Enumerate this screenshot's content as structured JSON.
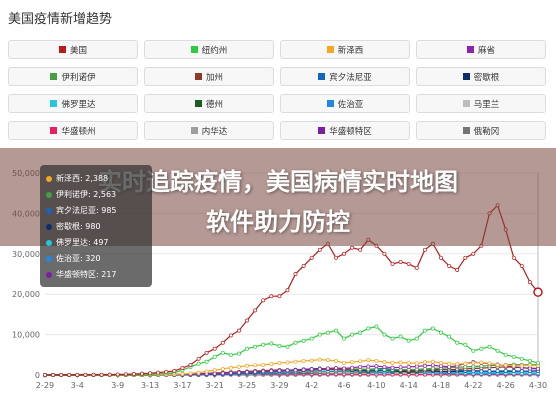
{
  "title": "美国疫情新增趋势",
  "legend": [
    {
      "label": "美国",
      "color": "#b71c1c"
    },
    {
      "label": "纽约州",
      "color": "#2ecc40"
    },
    {
      "label": "新泽西",
      "color": "#f5a623"
    },
    {
      "label": "麻省",
      "color": "#8e24aa"
    },
    {
      "label": "伊利诺伊",
      "color": "#43a047"
    },
    {
      "label": "加州",
      "color": "#8e3a2a"
    },
    {
      "label": "宾夕法尼亚",
      "color": "#1565c0"
    },
    {
      "label": "密歇根",
      "color": "#0d2c6c"
    },
    {
      "label": "佛罗里达",
      "color": "#26c6da"
    },
    {
      "label": "德州",
      "color": "#1b5e20"
    },
    {
      "label": "佐治亚",
      "color": "#1e88e5"
    },
    {
      "label": "马里兰",
      "color": "#bdbdbd"
    },
    {
      "label": "华盛顿州",
      "color": "#e91e63"
    },
    {
      "label": "内华达",
      "color": "#9e9e9e"
    },
    {
      "label": "华盛顿特区",
      "color": "#7b1fa2"
    },
    {
      "label": "俄勒冈",
      "color": "#757575"
    }
  ],
  "banner": {
    "line1": "实时追踪疫情，美国病情实时地图",
    "line2": "软件助力防控"
  },
  "tooltip": {
    "rows": [
      {
        "text": "新泽西: 2,388",
        "color": "#f5a623"
      },
      {
        "text": "伊利诺伊: 2,563",
        "color": "#43a047"
      },
      {
        "text": "宾夕法尼亚: 985",
        "color": "#1565c0"
      },
      {
        "text": "密歇根: 980",
        "color": "#0d2c6c"
      },
      {
        "text": "佛罗里达: 497",
        "color": "#26c6da"
      },
      {
        "text": "佐治亚: 320",
        "color": "#1e88e5"
      },
      {
        "text": "华盛顿特区: 217",
        "color": "#7b1fa2"
      }
    ]
  },
  "chart_data": {
    "type": "line",
    "title": "美国疫情新增趋势",
    "ylim": [
      0,
      50000
    ],
    "yticks": [
      0,
      10000,
      20000,
      30000,
      40000,
      50000
    ],
    "ytick_labels": [
      "0",
      "10,000",
      "20,000",
      "30,000",
      "40,000",
      "50,000"
    ],
    "x": [
      "2-29",
      "3-1",
      "3-2",
      "3-3",
      "3-4",
      "3-5",
      "3-6",
      "3-7",
      "3-8",
      "3-9",
      "3-10",
      "3-11",
      "3-12",
      "3-13",
      "3-14",
      "3-15",
      "3-16",
      "3-17",
      "3-18",
      "3-19",
      "3-20",
      "3-21",
      "3-22",
      "3-23",
      "3-24",
      "3-25",
      "3-26",
      "3-27",
      "3-28",
      "3-29",
      "3-30",
      "3-31",
      "4-1",
      "4-2",
      "4-3",
      "4-4",
      "4-5",
      "4-6",
      "4-7",
      "4-8",
      "4-9",
      "4-10",
      "4-11",
      "4-12",
      "4-13",
      "4-14",
      "4-15",
      "4-16",
      "4-17",
      "4-18",
      "4-19",
      "4-20",
      "4-21",
      "4-22",
      "4-23",
      "4-24",
      "4-25",
      "4-26",
      "4-27",
      "4-28",
      "4-29",
      "4-30"
    ],
    "xtick_labels": [
      "2-29",
      "3-4",
      "3-9",
      "3-13",
      "3-17",
      "3-21",
      "3-25",
      "3-29",
      "4-2",
      "4-6",
      "4-10",
      "4-14",
      "4-18",
      "4-22",
      "4-26",
      "4-30"
    ],
    "xtick_indices": [
      0,
      4,
      9,
      13,
      17,
      21,
      25,
      29,
      33,
      37,
      41,
      45,
      49,
      53,
      57,
      61
    ],
    "grid": true,
    "legend_placement": "top",
    "series": [
      {
        "name": "美国",
        "color": "#b71c1c",
        "values": [
          7,
          10,
          15,
          25,
          30,
          40,
          65,
          85,
          110,
          150,
          180,
          250,
          350,
          450,
          600,
          800,
          1000,
          1700,
          2500,
          4000,
          5500,
          6500,
          8000,
          9800,
          11000,
          13500,
          16000,
          18500,
          19500,
          19500,
          21000,
          25000,
          27000,
          29000,
          31000,
          32500,
          29000,
          30000,
          31500,
          31000,
          33500,
          32000,
          30000,
          27500,
          28000,
          27500,
          26500,
          31000,
          32500,
          29000,
          27000,
          26000,
          29000,
          30000,
          32000,
          40000,
          42000,
          36000,
          29000,
          27000,
          23000,
          20500
        ]
      },
      {
        "name": "纽约州",
        "color": "#2ecc40",
        "values": [
          0,
          0,
          0,
          1,
          5,
          10,
          20,
          30,
          40,
          60,
          80,
          120,
          150,
          200,
          300,
          400,
          600,
          1200,
          2000,
          2800,
          3300,
          4500,
          5500,
          5000,
          5300,
          6500,
          7000,
          7500,
          7800,
          7200,
          7000,
          8000,
          8500,
          9000,
          10000,
          10500,
          11000,
          9000,
          10000,
          10500,
          11500,
          12000,
          10000,
          9000,
          9500,
          8500,
          9000,
          11000,
          11500,
          10500,
          9500,
          8000,
          7500,
          6000,
          6500,
          7000,
          6000,
          5000,
          4500,
          4000,
          3500,
          3000
        ]
      },
      {
        "name": "新泽西",
        "color": "#f5a623",
        "values": [
          0,
          0,
          0,
          0,
          0,
          1,
          2,
          3,
          5,
          10,
          15,
          20,
          30,
          50,
          80,
          100,
          150,
          250,
          400,
          600,
          900,
          1200,
          1500,
          1800,
          2000,
          2300,
          2400,
          2500,
          2700,
          3000,
          3100,
          3300,
          3500,
          3600,
          3800,
          3700,
          3500,
          3000,
          3200,
          3400,
          3700,
          3500,
          3200,
          3000,
          3100,
          3000,
          2900,
          3200,
          3300,
          3000,
          2800,
          2700,
          2800,
          3000,
          3100,
          2900,
          2500,
          2400,
          2300,
          2300,
          2400,
          2388
        ]
      },
      {
        "name": "麻省",
        "color": "#8e24aa",
        "values": [
          0,
          0,
          0,
          0,
          0,
          0,
          1,
          2,
          4,
          8,
          12,
          20,
          30,
          45,
          60,
          80,
          100,
          150,
          200,
          250,
          300,
          350,
          400,
          500,
          600,
          700,
          800,
          900,
          1000,
          1100,
          1150,
          1200,
          1300,
          1400,
          1500,
          1600,
          1700,
          1600,
          1800,
          2000,
          2100,
          2200,
          2000,
          1800,
          1900,
          2000,
          2100,
          2300,
          2400,
          2200,
          2000,
          2300,
          2800,
          3200,
          3000,
          2800,
          2600,
          2300,
          2000,
          1800,
          1600,
          1500
        ]
      },
      {
        "name": "伊利诺伊",
        "color": "#43a047",
        "values": [
          0,
          0,
          0,
          0,
          0,
          0,
          1,
          2,
          3,
          5,
          8,
          12,
          18,
          25,
          40,
          60,
          80,
          100,
          150,
          200,
          250,
          350,
          450,
          550,
          650,
          750,
          850,
          950,
          1000,
          1050,
          1100,
          1200,
          1300,
          1400,
          1500,
          1600,
          1700,
          1600,
          1500,
          1450,
          1400,
          1350,
          1300,
          1250,
          1300,
          1350,
          1400,
          1500,
          1600,
          1700,
          1800,
          1900,
          2000,
          2100,
          2200,
          2300,
          2400,
          2500,
          2600,
          2500,
          2550,
          2563
        ]
      },
      {
        "name": "加州",
        "color": "#8e3a2a",
        "values": [
          0,
          1,
          2,
          3,
          5,
          8,
          10,
          15,
          20,
          25,
          30,
          40,
          50,
          70,
          90,
          120,
          150,
          200,
          250,
          300,
          400,
          500,
          600,
          700,
          800,
          900,
          1000,
          1100,
          1200,
          1250,
          1200,
          1100,
          1150,
          1200,
          1300,
          1400,
          1350,
          1300,
          1250,
          1200,
          1300,
          1350,
          1300,
          1250,
          1200,
          1100,
          1150,
          1200,
          1250,
          1300,
          1350,
          1400,
          1500,
          1600,
          1700,
          1800,
          1900,
          2000,
          1900,
          1800,
          1700,
          1600
        ]
      },
      {
        "name": "宾夕法尼亚",
        "color": "#1565c0",
        "values": [
          0,
          0,
          0,
          0,
          0,
          0,
          0,
          1,
          2,
          3,
          5,
          8,
          10,
          15,
          20,
          30,
          40,
          60,
          80,
          100,
          150,
          200,
          250,
          300,
          400,
          500,
          600,
          700,
          800,
          900,
          1000,
          1100,
          1200,
          1300,
          1400,
          1500,
          1600,
          1500,
          1400,
          1300,
          1400,
          1500,
          1600,
          1400,
          1300,
          1200,
          1100,
          1200,
          1300,
          1400,
          1300,
          1200,
          1100,
          1000,
          900,
          950,
          1000,
          1050,
          1000,
          950,
          990,
          985
        ]
      },
      {
        "name": "密歇根",
        "color": "#0d2c6c",
        "values": [
          0,
          0,
          0,
          0,
          0,
          0,
          0,
          0,
          0,
          0,
          1,
          2,
          5,
          10,
          15,
          25,
          35,
          50,
          80,
          120,
          200,
          300,
          400,
          500,
          600,
          700,
          800,
          900,
          1000,
          1100,
          1200,
          1300,
          1400,
          1500,
          1600,
          1500,
          1400,
          1300,
          1200,
          1100,
          1000,
          1100,
          1200,
          1100,
          1000,
          900,
          1000,
          1100,
          1000,
          900,
          800,
          900,
          1000,
          1100,
          1000,
          900,
          950,
          1000,
          980,
          960,
          970,
          980
        ]
      },
      {
        "name": "佛罗里达",
        "color": "#26c6da",
        "values": [
          0,
          0,
          1,
          1,
          2,
          3,
          4,
          5,
          6,
          8,
          10,
          15,
          20,
          30,
          40,
          60,
          80,
          100,
          150,
          200,
          250,
          300,
          350,
          400,
          450,
          500,
          550,
          600,
          650,
          700,
          750,
          800,
          850,
          900,
          950,
          1000,
          1050,
          1000,
          950,
          900,
          850,
          800,
          900,
          1000,
          1100,
          1000,
          900,
          800,
          700,
          650,
          600,
          550,
          600,
          650,
          700,
          650,
          600,
          550,
          500,
          480,
          490,
          497
        ]
      },
      {
        "name": "德州",
        "color": "#1b5e20",
        "values": [
          0,
          0,
          0,
          0,
          0,
          0,
          1,
          2,
          3,
          4,
          5,
          6,
          8,
          10,
          15,
          20,
          30,
          40,
          60,
          80,
          100,
          150,
          200,
          250,
          300,
          350,
          400,
          450,
          500,
          550,
          600,
          650,
          700,
          750,
          800,
          850,
          900,
          850,
          800,
          750,
          700,
          800,
          900,
          850,
          800,
          750,
          700,
          750,
          800,
          850,
          900,
          950,
          1000,
          950,
          900,
          850,
          800,
          850,
          900,
          950,
          1000,
          1050
        ]
      },
      {
        "name": "佐治亚",
        "color": "#1e88e5",
        "values": [
          0,
          0,
          0,
          0,
          0,
          0,
          0,
          1,
          2,
          3,
          4,
          5,
          6,
          8,
          10,
          15,
          20,
          30,
          50,
          80,
          100,
          150,
          200,
          250,
          300,
          350,
          400,
          450,
          500,
          550,
          600,
          650,
          700,
          750,
          800,
          850,
          900,
          850,
          800,
          750,
          700,
          650,
          600,
          700,
          800,
          750,
          700,
          650,
          600,
          550,
          500,
          450,
          400,
          350,
          300,
          350,
          400,
          380,
          350,
          330,
          325,
          320
        ]
      },
      {
        "name": "马里兰",
        "color": "#bdbdbd",
        "values": [
          0,
          0,
          0,
          0,
          0,
          0,
          1,
          1,
          2,
          3,
          5,
          7,
          10,
          15,
          20,
          30,
          40,
          60,
          80,
          100,
          120,
          150,
          180,
          200,
          250,
          300,
          350,
          400,
          450,
          500,
          550,
          600,
          650,
          700,
          750,
          800,
          850,
          800,
          750,
          700,
          750,
          800,
          850,
          900,
          850,
          800,
          750,
          700,
          750,
          800,
          850,
          900,
          950,
          1000,
          900,
          850,
          800,
          750,
          700,
          650,
          600,
          600
        ]
      },
      {
        "name": "华盛顿州",
        "color": "#e91e63",
        "values": [
          0,
          1,
          2,
          3,
          5,
          8,
          12,
          15,
          20,
          30,
          40,
          50,
          60,
          80,
          100,
          120,
          150,
          180,
          200,
          250,
          300,
          350,
          400,
          380,
          360,
          340,
          320,
          300,
          310,
          320,
          330,
          340,
          350,
          330,
          300,
          280,
          260,
          250,
          240,
          230,
          220,
          210,
          200,
          190,
          180,
          170,
          160,
          150,
          160,
          170,
          180,
          190,
          200,
          190,
          180,
          170,
          160,
          170,
          180,
          190,
          200,
          210
        ]
      },
      {
        "name": "内华达",
        "color": "#9e9e9e",
        "values": [
          0,
          0,
          0,
          0,
          0,
          0,
          0,
          1,
          1,
          2,
          3,
          4,
          5,
          6,
          8,
          10,
          15,
          20,
          30,
          40,
          50,
          60,
          80,
          100,
          120,
          140,
          160,
          180,
          200,
          220,
          230,
          240,
          250,
          240,
          230,
          220,
          210,
          200,
          190,
          180,
          170,
          160,
          150,
          140,
          130,
          120,
          110,
          100,
          110,
          120,
          130,
          140,
          150,
          140,
          130,
          120,
          110,
          100,
          90,
          80,
          85,
          90
        ]
      },
      {
        "name": "华盛顿特区",
        "color": "#7b1fa2",
        "values": [
          0,
          0,
          0,
          0,
          0,
          0,
          0,
          0,
          0,
          1,
          2,
          3,
          4,
          5,
          6,
          8,
          10,
          12,
          15,
          20,
          25,
          30,
          40,
          50,
          60,
          70,
          80,
          90,
          100,
          110,
          120,
          130,
          140,
          150,
          160,
          170,
          180,
          170,
          160,
          150,
          160,
          170,
          180,
          190,
          200,
          190,
          180,
          170,
          180,
          190,
          200,
          210,
          220,
          230,
          220,
          210,
          200,
          210,
          220,
          215,
          218,
          217
        ]
      },
      {
        "name": "俄勒冈",
        "color": "#757575",
        "values": [
          0,
          0,
          0,
          0,
          0,
          0,
          0,
          1,
          1,
          2,
          3,
          4,
          5,
          6,
          8,
          10,
          12,
          15,
          20,
          25,
          30,
          35,
          40,
          45,
          50,
          55,
          60,
          65,
          70,
          75,
          80,
          85,
          90,
          85,
          80,
          75,
          70,
          65,
          60,
          55,
          50,
          55,
          60,
          65,
          60,
          55,
          50,
          45,
          50,
          55,
          60,
          65,
          70,
          65,
          60,
          55,
          50,
          55,
          60,
          55,
          50,
          50
        ]
      }
    ]
  }
}
